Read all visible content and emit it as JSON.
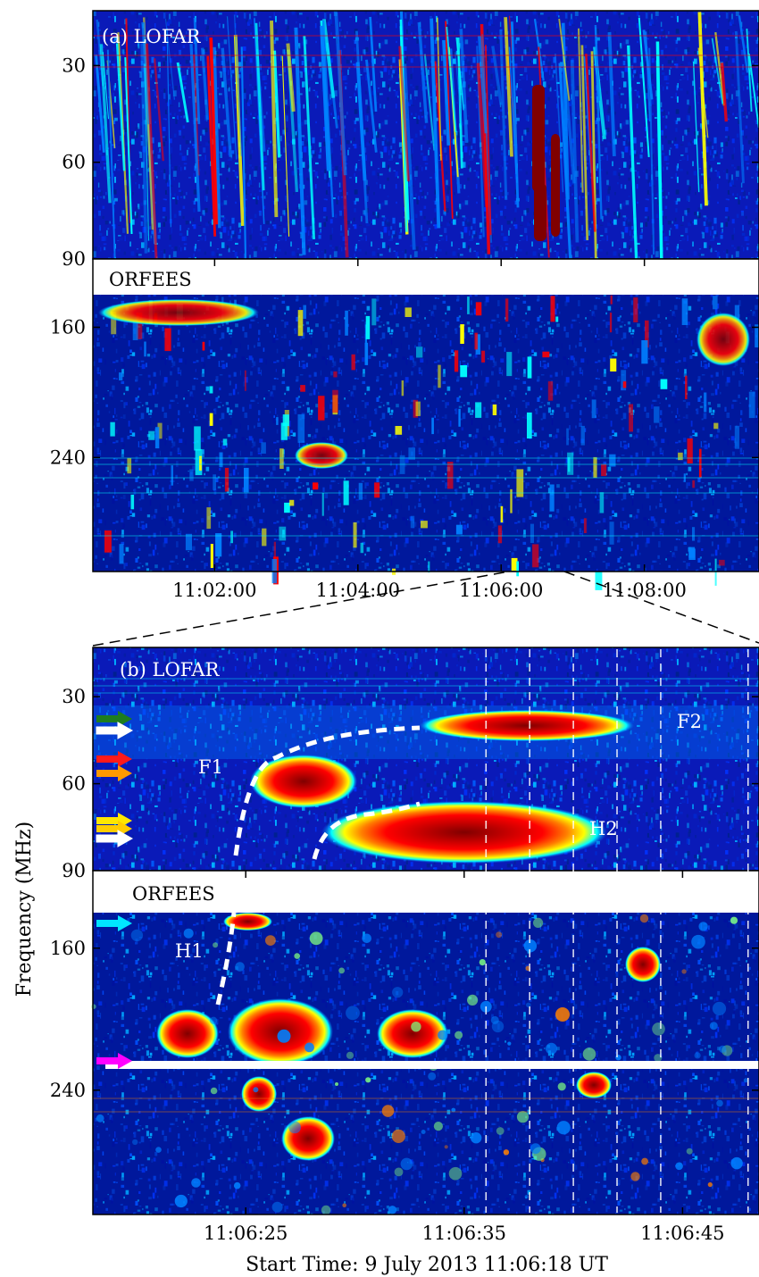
{
  "chart_data": {
    "type": "heatmap",
    "y_axis_label": "Frequency (MHz)",
    "x_axis_label": "Start Time: 9 July 2013 11:06:18 UT",
    "panels": [
      {
        "id": "a-lofar",
        "label": "(a) LOFAR",
        "instrument": "LOFAR",
        "yticks": [
          30,
          60,
          90
        ],
        "ylim": [
          13,
          90
        ],
        "time_range": [
          "11:00:18",
          "11:09:36"
        ],
        "label_color": "#ffffff"
      },
      {
        "id": "a-orfees",
        "label": "ORFEES",
        "instrument": "ORFEES",
        "yticks": [
          160,
          240
        ],
        "ylim": [
          140,
          310
        ],
        "xticks": [
          "11:02:00",
          "11:04:00",
          "11:06:00",
          "11:08:00"
        ],
        "label_color": "#000000"
      },
      {
        "id": "b-lofar",
        "label": "(b) LOFAR",
        "instrument": "LOFAR",
        "yticks": [
          30,
          60,
          90
        ],
        "ylim": [
          13,
          90
        ],
        "label_color": "#ffffff",
        "features": [
          {
            "name": "F1",
            "type": "fundamental"
          },
          {
            "name": "F2",
            "type": "fundamental"
          },
          {
            "name": "H2",
            "type": "harmonic"
          }
        ],
        "arrow_colors": [
          "#1e7d1e",
          "#ffffff",
          "#ff1a1a",
          "#ff9900",
          "#ffe600",
          "#ffcc00",
          "#ffffff"
        ]
      },
      {
        "id": "b-orfees",
        "label": "ORFEES",
        "instrument": "ORFEES",
        "yticks": [
          160,
          240
        ],
        "ylim": [
          140,
          310
        ],
        "xticks": [
          "11:06:25",
          "11:06:35",
          "11:06:45"
        ],
        "label_color": "#000000",
        "features": [
          {
            "name": "H1",
            "type": "harmonic"
          }
        ],
        "arrow_colors": [
          "#00e5ff",
          "#ff00ff"
        ]
      }
    ],
    "vertical_markers_seconds": [
      20.8,
      22.8,
      24.8,
      26.8,
      28.8,
      32.8
    ],
    "colormap": [
      "#00007f",
      "#0000ff",
      "#0080ff",
      "#00ffff",
      "#80ff80",
      "#ffff00",
      "#ff8000",
      "#ff0000",
      "#800000"
    ]
  }
}
